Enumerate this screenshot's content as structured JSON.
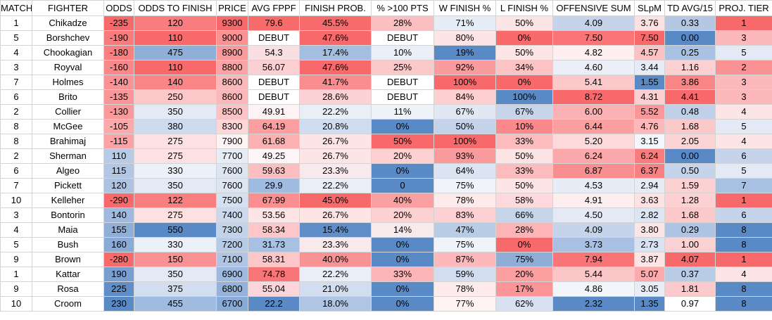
{
  "columns": [
    "MATCH",
    "FIGHTER",
    "ODDS",
    "ODDS TO FINISH",
    "PRICE",
    "AVG FPPF",
    "FINISH PROB.",
    "% >100 PTS",
    "W FINISH %",
    "L FINISH %",
    "OFFENSIVE SUM",
    "SLpM",
    "TD AVG/15",
    "PROJ. TIER"
  ],
  "rows": [
    {
      "cells": [
        "1",
        "Chikadze",
        "-235",
        "120",
        "9300",
        "79.6",
        "45.5%",
        "28%",
        "71%",
        "50%",
        "4.09",
        "3.76",
        "0.33",
        "1"
      ],
      "colors": [
        "#ffffff",
        "#ffffff",
        "#f8696b",
        "#f97c7e",
        "#f8696b",
        "#f86b6d",
        "#f86b6d",
        "#fcbfc1",
        "#e7edf7",
        "#fde4e5",
        "#c5d4ea",
        "#fde1e2",
        "#b4c8e4",
        "#f8696b"
      ]
    },
    {
      "cells": [
        "5",
        "Borshchev",
        "-190",
        "110",
        "9000",
        "DEBUT",
        "47.6%",
        "DEBUT",
        "80%",
        "0%",
        "7.50",
        "7.50",
        "0.00",
        "3"
      ],
      "colors": [
        "#ffffff",
        "#ffffff",
        "#f97b7d",
        "#f8696b",
        "#fa9294",
        "#ffffff",
        "#f8696b",
        "#ffffff",
        "#fde5e6",
        "#f8696b",
        "#f97577",
        "#f8696b",
        "#5a8ac6",
        "#fcb8ba"
      ]
    },
    {
      "cells": [
        "4",
        "Chookagian",
        "-180",
        "475",
        "8900",
        "54.3",
        "17.4%",
        "10%",
        "19%",
        "50%",
        "4.82",
        "4.57",
        "0.25",
        "5"
      ],
      "colors": [
        "#ffffff",
        "#ffffff",
        "#f97f81",
        "#8fafd8",
        "#fb9a9c",
        "#f9dfe1",
        "#a4bee0",
        "#e9eef7",
        "#5a8ac6",
        "#fde4e5",
        "#fef0f1",
        "#fcc1c3",
        "#a9c1e2",
        "#e3e9f5"
      ]
    },
    {
      "cells": [
        "3",
        "Royval",
        "-160",
        "110",
        "8800",
        "56.07",
        "47.6%",
        "25%",
        "92%",
        "34%",
        "4.60",
        "3.44",
        "1.16",
        "2"
      ],
      "colors": [
        "#ffffff",
        "#ffffff",
        "#fa8789",
        "#f8696b",
        "#fba4a6",
        "#fcd0d2",
        "#f8696b",
        "#fcc9cb",
        "#fa9b9d",
        "#fdc2c4",
        "#ebf0f8",
        "#e6ecf6",
        "#fdd0d2",
        "#fa9193"
      ]
    },
    {
      "cells": [
        "7",
        "Holmes",
        "-140",
        "140",
        "8600",
        "DEBUT",
        "41.7%",
        "DEBUT",
        "100%",
        "0%",
        "5.41",
        "1.55",
        "3.86",
        "3"
      ],
      "colors": [
        "#ffffff",
        "#ffffff",
        "#fa9395",
        "#f98587",
        "#fbb8ba",
        "#ffffff",
        "#f98d8f",
        "#ffffff",
        "#f8696b",
        "#f8696b",
        "#fcc9cb",
        "#5a8ac6",
        "#f98587",
        "#fcb8ba"
      ]
    },
    {
      "cells": [
        "6",
        "Brito",
        "-135",
        "250",
        "8600",
        "DEBUT",
        "28.6%",
        "DEBUT",
        "84%",
        "100%",
        "8.72",
        "4.31",
        "4.41",
        "3"
      ],
      "colors": [
        "#ffffff",
        "#ffffff",
        "#fa9698",
        "#fcc7c9",
        "#fbb8ba",
        "#ffffff",
        "#fcd2d4",
        "#ffffff",
        "#fdcfd1",
        "#5a8ac6",
        "#f8696b",
        "#fccfd1",
        "#f8696b",
        "#fcb8ba"
      ]
    },
    {
      "cells": [
        "2",
        "Collier",
        "-130",
        "350",
        "8500",
        "49.91",
        "22.2%",
        "11%",
        "67%",
        "67%",
        "6.00",
        "5.52",
        "0.48",
        "4"
      ],
      "colors": [
        "#ffffff",
        "#ffffff",
        "#fb999b",
        "#e4eaf5",
        "#fcc2c4",
        "#fef3f4",
        "#eaeef7",
        "#eef2f9",
        "#e1e8f4",
        "#c7d5eb",
        "#fbb1b3",
        "#fb9799",
        "#c0d0e8",
        "#fde4e5"
      ]
    },
    {
      "cells": [
        "8",
        "McGee",
        "-105",
        "380",
        "8300",
        "64.19",
        "20.8%",
        "0%",
        "50%",
        "10%",
        "6.44",
        "4.76",
        "1.68",
        "5"
      ],
      "colors": [
        "#ffffff",
        "#ffffff",
        "#fca9ab",
        "#cedbee",
        "#fdd6d8",
        "#fa9ea0",
        "#d0dcef",
        "#5a8ac6",
        "#c4d3ea",
        "#f9898b",
        "#fb9fa1",
        "#fcb8ba",
        "#fcc9cb",
        "#e3e9f5"
      ]
    },
    {
      "cells": [
        "8",
        "Brahimaj",
        "-115",
        "275",
        "7900",
        "61.68",
        "26.7%",
        "50%",
        "100%",
        "33%",
        "5.20",
        "3.15",
        "2.05",
        "4"
      ],
      "colors": [
        "#ffffff",
        "#ffffff",
        "#fca3a5",
        "#fde1e2",
        "#fef3f4",
        "#fbb0b2",
        "#fde4e5",
        "#f8696b",
        "#f8696b",
        "#fcbcbe",
        "#fcd9db",
        "#f4f6fb",
        "#fdd4d6",
        "#fde4e5"
      ]
    },
    {
      "cells": [
        "2",
        "Sherman",
        "110",
        "275",
        "7700",
        "49.25",
        "26.7%",
        "20%",
        "93%",
        "50%",
        "6.24",
        "6.24",
        "0.00",
        "6"
      ],
      "colors": [
        "#ffffff",
        "#ffffff",
        "#b8cbe6",
        "#fde1e2",
        "#e7edf7",
        "#fef5f6",
        "#fde4e5",
        "#fdd0d2",
        "#f99b9d",
        "#fde4e5",
        "#fca8aa",
        "#f97c7e",
        "#5a8ac6",
        "#c5d4ea"
      ]
    },
    {
      "cells": [
        "6",
        "Algeo",
        "115",
        "330",
        "7600",
        "59.63",
        "23.3%",
        "0%",
        "64%",
        "33%",
        "6.87",
        "6.37",
        "0.50",
        "5"
      ],
      "colors": [
        "#ffffff",
        "#ffffff",
        "#b3c7e4",
        "#ecf0f8",
        "#dde5f3",
        "#fcbfc1",
        "#f7e9ec",
        "#5a8ac6",
        "#dbe4f2",
        "#fcbcbe",
        "#f98e90",
        "#f98183",
        "#c5d4ea",
        "#e3e9f5"
      ]
    },
    {
      "cells": [
        "7",
        "Pickett",
        "120",
        "350",
        "7600",
        "29.9",
        "22.2%",
        "0",
        "75%",
        "50%",
        "4.53",
        "2.94",
        "1.59",
        "7"
      ],
      "colors": [
        "#ffffff",
        "#ffffff",
        "#aec3e2",
        "#e4eaf5",
        "#dde5f3",
        "#a0bbe0",
        "#eaeef7",
        "#5a8ac6",
        "#f0f3fa",
        "#fde4e5",
        "#e7edf7",
        "#e6ecf6",
        "#fdd0d2",
        "#a8c1e2"
      ]
    },
    {
      "cells": [
        "10",
        "Kelleher",
        "-290",
        "122",
        "7500",
        "67.99",
        "45.0%",
        "40%",
        "78%",
        "58%",
        "4.91",
        "3.63",
        "1.28",
        "1"
      ],
      "colors": [
        "#ffffff",
        "#ffffff",
        "#f8696b",
        "#f97e80",
        "#d5e0f0",
        "#fa8e90",
        "#f8696b",
        "#fba0a2",
        "#fdebec",
        "#fdd9db",
        "#fdeeef",
        "#fde2e3",
        "#fdd0d2",
        "#f8696b"
      ]
    },
    {
      "cells": [
        "3",
        "Bontorin",
        "140",
        "275",
        "7400",
        "53.56",
        "26.7%",
        "20%",
        "83%",
        "66%",
        "4.50",
        "2.82",
        "1.68",
        "6"
      ],
      "colors": [
        "#ffffff",
        "#ffffff",
        "#9fb9df",
        "#fde1e2",
        "#ccd9ed",
        "#fde4e5",
        "#fde4e5",
        "#fdd0d2",
        "#fdd1d3",
        "#c7d5eb",
        "#e4eaf5",
        "#dde5f3",
        "#fcc9cb",
        "#c5d4ea"
      ]
    },
    {
      "cells": [
        "4",
        "Maia",
        "155",
        "550",
        "7300",
        "58.34",
        "15.4%",
        "14%",
        "47%",
        "28%",
        "4.09",
        "3.80",
        "0.29",
        "8"
      ],
      "colors": [
        "#ffffff",
        "#ffffff",
        "#8fafd8",
        "#5a8ac6",
        "#c2d2e9",
        "#fdc7c9",
        "#5f8ec8",
        "#f8e9ec",
        "#b9cce6",
        "#fdb4b6",
        "#c5d4ea",
        "#fde4e5",
        "#aec4e3",
        "#5a8ac6"
      ]
    },
    {
      "cells": [
        "5",
        "Bush",
        "160",
        "330",
        "7200",
        "31.73",
        "23.3%",
        "0%",
        "75%",
        "0%",
        "3.73",
        "2.73",
        "1.00",
        "8"
      ],
      "colors": [
        "#ffffff",
        "#ffffff",
        "#8aabd6",
        "#ecf0f8",
        "#b8cbe6",
        "#a8c1e2",
        "#f7e9ec",
        "#5a8ac6",
        "#f0f3fa",
        "#f8696b",
        "#a8c1e2",
        "#d8e2f1",
        "#fad2d4",
        "#5a8ac6"
      ]
    },
    {
      "cells": [
        "9",
        "Brown",
        "-280",
        "150",
        "7100",
        "58.31",
        "40.0%",
        "0%",
        "87%",
        "75%",
        "7.94",
        "3.87",
        "4.07",
        "1"
      ],
      "colors": [
        "#ffffff",
        "#ffffff",
        "#f86b6d",
        "#fa9193",
        "#b0c5e3",
        "#fdc7c9",
        "#f99294",
        "#5a8ac6",
        "#fcb8ba",
        "#8eaed8",
        "#f97476",
        "#fde4e5",
        "#f8696b",
        "#f8696b"
      ]
    },
    {
      "cells": [
        "1",
        "Kattar",
        "190",
        "350",
        "6900",
        "74.78",
        "22.2%",
        "33%",
        "59%",
        "20%",
        "5.44",
        "5.07",
        "0.37",
        "4"
      ],
      "colors": [
        "#ffffff",
        "#ffffff",
        "#779fd0",
        "#e4eaf5",
        "#9fb9df",
        "#f87678",
        "#eaeef7",
        "#fcb5b7",
        "#d2ddef",
        "#fb9fa1",
        "#fcc6c8",
        "#fdaaac",
        "#b9cce6",
        "#fde4e5"
      ]
    },
    {
      "cells": [
        "9",
        "Rosa",
        "225",
        "375",
        "6800",
        "55.04",
        "21.0%",
        "0%",
        "78%",
        "17%",
        "4.86",
        "3.05",
        "1.81",
        "8"
      ],
      "colors": [
        "#ffffff",
        "#ffffff",
        "#608ec8",
        "#d2ddef",
        "#95b3da",
        "#fbd5d7",
        "#d2ddef",
        "#5a8ac6",
        "#fdebec",
        "#fb9597",
        "#f2f5fa",
        "#e8eef7",
        "#fccacc",
        "#5a8ac6"
      ]
    },
    {
      "cells": [
        "10",
        "Croom",
        "230",
        "455",
        "6700",
        "22.2",
        "18.0%",
        "0%",
        "77%",
        "62%",
        "2.32",
        "1.35",
        "0.97",
        "8"
      ],
      "colors": [
        "#ffffff",
        "#ffffff",
        "#5a8ac6",
        "#a0bbe0",
        "#8aabd6",
        "#5a8ac6",
        "#afc5e3",
        "#5a8ac6",
        "#fef2f3",
        "#d7e1f1",
        "#5a8ac6",
        "#5a8ac6",
        "#ffffff",
        "#5a8ac6"
      ]
    }
  ]
}
